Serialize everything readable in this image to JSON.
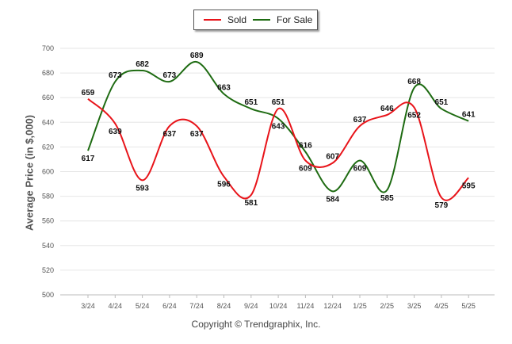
{
  "chart_data": {
    "type": "line",
    "ylabel": "Average Price (in $,000)",
    "ylim": [
      500,
      700
    ],
    "yticks": [
      500,
      520,
      540,
      560,
      580,
      600,
      620,
      640,
      660,
      680,
      700
    ],
    "grid": true,
    "legend_position": "top-center",
    "categories": [
      "3/24",
      "4/24",
      "5/24",
      "6/24",
      "7/24",
      "8/24",
      "9/24",
      "10/24",
      "11/24",
      "12/24",
      "1/25",
      "2/25",
      "3/25",
      "4/25",
      "5/25"
    ],
    "series": [
      {
        "name": "Sold",
        "color": "#e8141a",
        "values": [
          659,
          639,
          593,
          637,
          637,
          596,
          581,
          651,
          609,
          607,
          637,
          646,
          652,
          579,
          595
        ]
      },
      {
        "name": "For Sale",
        "color": "#1e6b12",
        "values": [
          617,
          673,
          682,
          673,
          689,
          663,
          651,
          643,
          616,
          584,
          609,
          585,
          668,
          651,
          641
        ]
      }
    ]
  },
  "footer": {
    "copyright": "Copyright © Trendgraphix, Inc."
  }
}
